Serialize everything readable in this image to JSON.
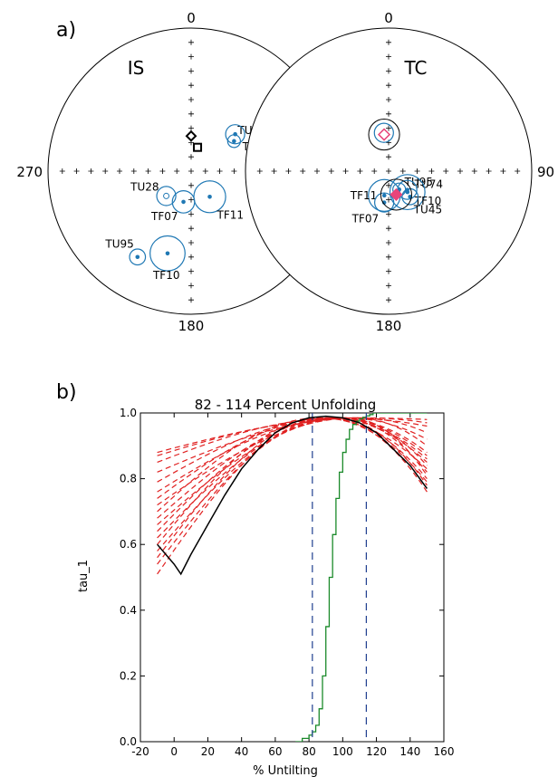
{
  "panel_a": {
    "label": "a)",
    "nets": [
      {
        "name": "IS",
        "top_label": "0",
        "bottom_label": "180",
        "left_label": "270",
        "right_label": "",
        "sites": [
          {
            "name": "TU45",
            "dec": 55,
            "inc": 60,
            "a95": 4,
            "filled": true
          },
          {
            "name": "TU74",
            "dec": 50,
            "inc": 57,
            "a95": 6,
            "filled": true
          },
          {
            "name": "TU28",
            "dec": 225,
            "inc": 70,
            "a95": 6,
            "filled": false
          },
          {
            "name": "TF07",
            "dec": 194,
            "inc": 72,
            "a95": 7,
            "filled": true
          },
          {
            "name": "TF11",
            "dec": 144,
            "inc": 72,
            "a95": 10,
            "filled": true
          },
          {
            "name": "TU95",
            "dec": 212,
            "inc": 30,
            "a95": 5,
            "filled": true
          },
          {
            "name": "TF10",
            "dec": 196,
            "inc": 40,
            "a95": 11,
            "filled": true
          }
        ],
        "means": [
          {
            "symbol": "square",
            "dec": 15,
            "inc": 76
          },
          {
            "symbol": "diamond",
            "dec": 0,
            "inc": 70
          }
        ]
      },
      {
        "name": "TC",
        "top_label": "0",
        "bottom_label": "180",
        "left_label": "",
        "right_label": "90",
        "sites": [
          {
            "name": "",
            "dec": 353,
            "inc": 68,
            "a95": 6,
            "filled": false
          },
          {
            "name": "TU95",
            "dec": 150,
            "inc": 78,
            "a95": 4,
            "filled": true
          },
          {
            "name": "TU74",
            "dec": 135,
            "inc": 75,
            "a95": 6,
            "filled": true
          },
          {
            "name": "TF10",
            "dec": 138,
            "inc": 74,
            "a95": 11,
            "filled": true
          },
          {
            "name": "TU45",
            "dec": 140,
            "inc": 71,
            "a95": 5,
            "filled": true
          },
          {
            "name": "TF11",
            "dec": 190,
            "inc": 76,
            "a95": 10,
            "filled": true
          },
          {
            "name": "TF07",
            "dec": 188,
            "inc": 72,
            "a95": 6,
            "filled": true
          }
        ],
        "means": [
          {
            "symbol": "diamond-open",
            "dec": 353,
            "inc": 69,
            "a95": 8
          },
          {
            "symbol": "diamond-filled",
            "dec": 162,
            "inc": 76,
            "a95": 8
          }
        ]
      }
    ]
  },
  "panel_b": {
    "label": "b)",
    "chart_data": {
      "type": "line",
      "title": "82 - 114 Percent Unfolding",
      "xlabel": "% Untilting",
      "ylabel": "tau_1",
      "xlim": [
        -20,
        160
      ],
      "ylim": [
        0,
        1.0
      ],
      "xticks": [
        -20,
        0,
        20,
        40,
        60,
        80,
        100,
        120,
        140,
        160
      ],
      "yticks": [
        0.0,
        0.2,
        0.4,
        0.6,
        0.8,
        1.0
      ],
      "bounds": [
        82,
        114
      ],
      "main_curve": {
        "x": [
          -10,
          0,
          4,
          10,
          20,
          30,
          40,
          50,
          60,
          70,
          80,
          90,
          100,
          110,
          120,
          130,
          140,
          150
        ],
        "y": [
          0.6,
          0.54,
          0.51,
          0.57,
          0.66,
          0.75,
          0.83,
          0.89,
          0.94,
          0.97,
          0.985,
          0.99,
          0.985,
          0.97,
          0.94,
          0.89,
          0.84,
          0.77
        ]
      },
      "cumulative_curve": {
        "x": [
          72,
          76,
          80,
          82,
          84,
          86,
          88,
          90,
          92,
          94,
          96,
          98,
          100,
          102,
          104,
          106,
          108,
          110,
          112,
          114,
          116,
          118
        ],
        "y": [
          0.0,
          0.01,
          0.02,
          0.03,
          0.05,
          0.1,
          0.2,
          0.35,
          0.5,
          0.63,
          0.74,
          0.82,
          0.88,
          0.92,
          0.95,
          0.965,
          0.975,
          0.982,
          0.987,
          0.991,
          0.995,
          1.0
        ]
      },
      "bootstrap_curves": [
        {
          "start": 0.51,
          "tail": 0.76,
          "peak": 92
        },
        {
          "start": 0.54,
          "tail": 0.78,
          "peak": 95
        },
        {
          "start": 0.56,
          "tail": 0.8,
          "peak": 90
        },
        {
          "start": 0.58,
          "tail": 0.82,
          "peak": 98
        },
        {
          "start": 0.6,
          "tail": 0.79,
          "peak": 88
        },
        {
          "start": 0.62,
          "tail": 0.84,
          "peak": 100
        },
        {
          "start": 0.64,
          "tail": 0.86,
          "peak": 94
        },
        {
          "start": 0.66,
          "tail": 0.81,
          "peak": 104
        },
        {
          "start": 0.68,
          "tail": 0.88,
          "peak": 97
        },
        {
          "start": 0.7,
          "tail": 0.83,
          "peak": 86
        },
        {
          "start": 0.72,
          "tail": 0.9,
          "peak": 108
        },
        {
          "start": 0.74,
          "tail": 0.85,
          "peak": 93
        },
        {
          "start": 0.76,
          "tail": 0.92,
          "peak": 102
        },
        {
          "start": 0.79,
          "tail": 0.87,
          "peak": 96
        },
        {
          "start": 0.82,
          "tail": 0.94,
          "peak": 110
        },
        {
          "start": 0.85,
          "tail": 0.96,
          "peak": 99
        },
        {
          "start": 0.87,
          "tail": 0.98,
          "peak": 106
        },
        {
          "start": 0.88,
          "tail": 0.97,
          "peak": 112
        }
      ],
      "colors": {
        "main": "#000000",
        "cumulative": "#1a8a2a",
        "bootstrap": "#e02020",
        "bounds": "#1f3f8f"
      }
    }
  },
  "colors": {
    "site": "#1f78b4",
    "mean_pink": "#e8457a",
    "axis": "#000000"
  }
}
